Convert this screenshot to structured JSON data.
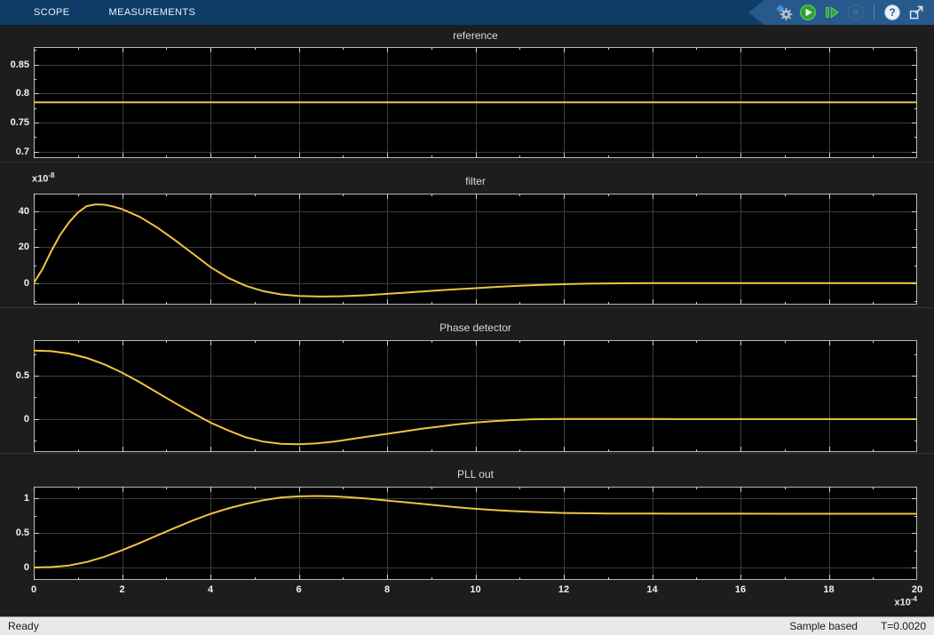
{
  "toolbar": {
    "tabs": [
      {
        "label": "SCOPE"
      },
      {
        "label": "MEASUREMENTS"
      }
    ],
    "help_glyph": "?",
    "icons": [
      "settings-gear",
      "run-play",
      "step-forward",
      "stop",
      "help-question",
      "pop-out"
    ],
    "colors": {
      "background": "#0e3c66",
      "icon_strip": "#275a8c",
      "run_green": "#2da42d",
      "disabled_blue_gray": "#4e6e8e"
    }
  },
  "statusbar": {
    "status": "Ready",
    "mode": "Sample based",
    "time": "T=0.0020"
  },
  "colors": {
    "panel_bg": "#1d1d1d",
    "plot_bg": "#000000",
    "grid": "#3d3d3d",
    "axis_border": "#b9b9b9",
    "tick": "#cfcfcf",
    "tick_label": "#f2f2f2",
    "title": "#d9d9d9",
    "line_yellow": "#efc43e"
  },
  "chart_data": [
    {
      "type": "line",
      "title": "reference",
      "xlim": [
        0,
        20
      ],
      "ylim": [
        0.689,
        0.88
      ],
      "xticks": [
        0,
        2,
        4,
        6,
        8,
        10,
        12,
        14,
        16,
        18,
        20
      ],
      "yticks": [
        0.7,
        0.75,
        0.8,
        0.85
      ],
      "ytick_labels": [
        "0.7",
        "0.75",
        "0.8",
        "0.85"
      ],
      "grid": true,
      "legend": "none",
      "series": [
        {
          "name": "reference",
          "color": "#efc43e",
          "points": [
            [
              0,
              0.785
            ],
            [
              20,
              0.785
            ]
          ]
        }
      ]
    },
    {
      "type": "line",
      "title": "filter",
      "y_scale_label": {
        "base": "x10",
        "exp": "-8"
      },
      "xlim": [
        0,
        20
      ],
      "ylim": [
        -12,
        50
      ],
      "xticks": [
        0,
        2,
        4,
        6,
        8,
        10,
        12,
        14,
        16,
        18,
        20
      ],
      "yticks": [
        0,
        20,
        40
      ],
      "ytick_labels": [
        "0",
        "20",
        "40"
      ],
      "grid": true,
      "legend": "none",
      "series": [
        {
          "name": "filter",
          "color": "#efc43e",
          "points": [
            [
              0,
              0
            ],
            [
              0.2,
              8
            ],
            [
              0.4,
              18
            ],
            [
              0.6,
              27
            ],
            [
              0.8,
              34
            ],
            [
              1.0,
              39.5
            ],
            [
              1.2,
              43
            ],
            [
              1.4,
              44
            ],
            [
              1.6,
              43.8
            ],
            [
              1.8,
              42.8
            ],
            [
              2.0,
              41.3
            ],
            [
              2.4,
              37
            ],
            [
              2.8,
              31
            ],
            [
              3.2,
              24
            ],
            [
              3.6,
              16.5
            ],
            [
              4.0,
              9
            ],
            [
              4.4,
              3
            ],
            [
              4.8,
              -1.5
            ],
            [
              5.2,
              -4.5
            ],
            [
              5.6,
              -6.3
            ],
            [
              6.0,
              -7.2
            ],
            [
              6.5,
              -7.5
            ],
            [
              7.0,
              -7.3
            ],
            [
              7.5,
              -6.8
            ],
            [
              8.0,
              -6
            ],
            [
              8.5,
              -5.2
            ],
            [
              9.0,
              -4.3
            ],
            [
              9.5,
              -3.5
            ],
            [
              10.0,
              -2.8
            ],
            [
              10.5,
              -2.1
            ],
            [
              11.0,
              -1.5
            ],
            [
              11.5,
              -1.0
            ],
            [
              12.0,
              -0.6
            ],
            [
              12.5,
              -0.3
            ],
            [
              13.0,
              -0.15
            ],
            [
              13.5,
              -0.05
            ],
            [
              14,
              0
            ],
            [
              15,
              0
            ],
            [
              16,
              0
            ],
            [
              17,
              0
            ],
            [
              18,
              0
            ],
            [
              19,
              0
            ],
            [
              20,
              0
            ]
          ]
        }
      ]
    },
    {
      "type": "line",
      "title": "Phase detector",
      "xlim": [
        0,
        20
      ],
      "ylim": [
        -0.38,
        0.91
      ],
      "xticks": [
        0,
        2,
        4,
        6,
        8,
        10,
        12,
        14,
        16,
        18,
        20
      ],
      "yticks": [
        0,
        0.5
      ],
      "ytick_labels": [
        "0",
        "0.5"
      ],
      "grid": true,
      "legend": "none",
      "series": [
        {
          "name": "Phase detector",
          "color": "#efc43e",
          "points": [
            [
              0,
              0.79
            ],
            [
              0.4,
              0.783
            ],
            [
              0.8,
              0.755
            ],
            [
              1.2,
              0.705
            ],
            [
              1.6,
              0.63
            ],
            [
              2.0,
              0.535
            ],
            [
              2.4,
              0.425
            ],
            [
              2.8,
              0.305
            ],
            [
              3.2,
              0.185
            ],
            [
              3.6,
              0.07
            ],
            [
              4.0,
              -0.04
            ],
            [
              4.4,
              -0.13
            ],
            [
              4.8,
              -0.21
            ],
            [
              5.2,
              -0.26
            ],
            [
              5.6,
              -0.285
            ],
            [
              6.0,
              -0.29
            ],
            [
              6.4,
              -0.28
            ],
            [
              6.8,
              -0.26
            ],
            [
              7.2,
              -0.23
            ],
            [
              7.6,
              -0.2
            ],
            [
              8.0,
              -0.17
            ],
            [
              8.4,
              -0.14
            ],
            [
              8.8,
              -0.11
            ],
            [
              9.2,
              -0.085
            ],
            [
              9.6,
              -0.06
            ],
            [
              10.0,
              -0.04
            ],
            [
              10.4,
              -0.025
            ],
            [
              10.8,
              -0.012
            ],
            [
              11.2,
              -0.004
            ],
            [
              11.6,
              0
            ],
            [
              12,
              0.002
            ],
            [
              13,
              0.002
            ],
            [
              14,
              0.001
            ],
            [
              16,
              0
            ],
            [
              18,
              0
            ],
            [
              20,
              0
            ]
          ]
        }
      ]
    },
    {
      "type": "line",
      "title": "PLL out",
      "x_scale_label": {
        "base": "x10",
        "exp": "-4"
      },
      "xlim": [
        0,
        20
      ],
      "ylim": [
        -0.18,
        1.17
      ],
      "xticks": [
        0,
        2,
        4,
        6,
        8,
        10,
        12,
        14,
        16,
        18,
        20
      ],
      "xtick_labels": [
        "0",
        "2",
        "4",
        "6",
        "8",
        "10",
        "12",
        "14",
        "16",
        "18",
        "20"
      ],
      "yticks": [
        0,
        0.5,
        1
      ],
      "ytick_labels": [
        "0",
        "0.5",
        "1"
      ],
      "grid": true,
      "legend": "none",
      "series": [
        {
          "name": "PLL out",
          "color": "#efc43e",
          "points": [
            [
              0,
              0
            ],
            [
              0.4,
              0.006
            ],
            [
              0.8,
              0.03
            ],
            [
              1.2,
              0.08
            ],
            [
              1.6,
              0.155
            ],
            [
              2.0,
              0.25
            ],
            [
              2.4,
              0.355
            ],
            [
              2.8,
              0.465
            ],
            [
              3.2,
              0.575
            ],
            [
              3.6,
              0.68
            ],
            [
              4.0,
              0.775
            ],
            [
              4.4,
              0.855
            ],
            [
              4.8,
              0.92
            ],
            [
              5.2,
              0.975
            ],
            [
              5.6,
              1.015
            ],
            [
              6.0,
              1.03
            ],
            [
              6.4,
              1.035
            ],
            [
              6.8,
              1.03
            ],
            [
              7.2,
              1.015
            ],
            [
              7.6,
              0.995
            ],
            [
              8.0,
              0.97
            ],
            [
              8.4,
              0.945
            ],
            [
              8.8,
              0.92
            ],
            [
              9.2,
              0.895
            ],
            [
              9.6,
              0.87
            ],
            [
              10.0,
              0.85
            ],
            [
              10.4,
              0.832
            ],
            [
              10.8,
              0.818
            ],
            [
              11.2,
              0.806
            ],
            [
              11.6,
              0.797
            ],
            [
              12.0,
              0.79
            ],
            [
              12.5,
              0.785
            ],
            [
              13.0,
              0.782
            ],
            [
              14,
              0.78
            ],
            [
              15,
              0.779
            ],
            [
              16,
              0.779
            ],
            [
              17,
              0.778
            ],
            [
              18,
              0.778
            ],
            [
              19,
              0.778
            ],
            [
              20,
              0.778
            ]
          ]
        }
      ]
    }
  ]
}
